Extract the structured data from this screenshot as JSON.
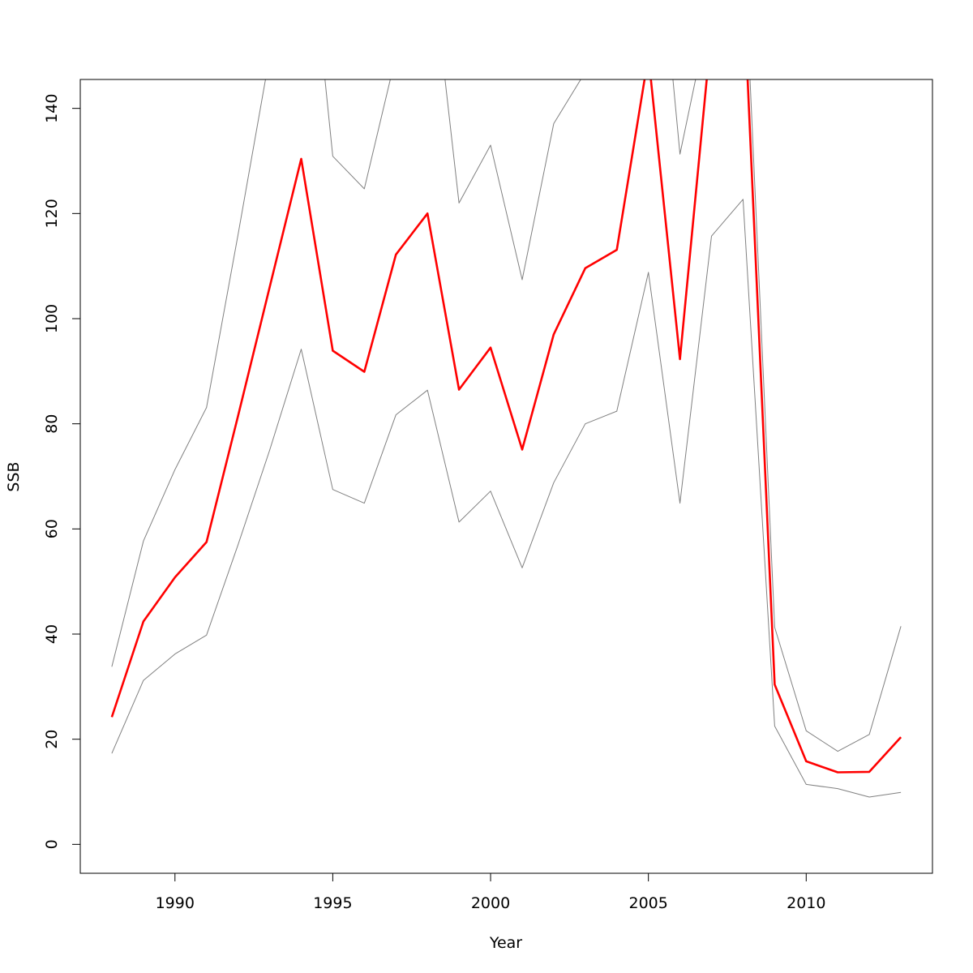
{
  "chart_data": {
    "type": "line",
    "title": "",
    "xlabel": "Year",
    "ylabel": "SSB",
    "xlim": [
      1987,
      2014
    ],
    "ylim": [
      -5.5,
      145.5
    ],
    "x_ticks": [
      1990,
      1995,
      2000,
      2005,
      2010
    ],
    "y_ticks": [
      0,
      20,
      40,
      60,
      80,
      100,
      120,
      140
    ],
    "grid": false,
    "x": [
      1988,
      1989,
      1990,
      1991,
      1992,
      1993,
      1994,
      1995,
      1996,
      1997,
      1998,
      1999,
      2000,
      2001,
      2002,
      2003,
      2004,
      2005,
      2006,
      2007,
      2008,
      2009,
      2010,
      2011,
      2012,
      2013
    ],
    "series": [
      {
        "role": "upper",
        "color": "#808080",
        "values": [
          33.8,
          57.7,
          71.3,
          83.1,
          116,
          150,
          190,
          130.9,
          124.7,
          150,
          175,
          122,
          133,
          107.4,
          137.1,
          146.9,
          155,
          195,
          131.3,
          160,
          175,
          41.3,
          21.6,
          17.7,
          20.9,
          41.5
        ]
      },
      {
        "role": "estimate",
        "color": "#ff0000",
        "values": [
          24.2,
          42.4,
          50.8,
          57.5,
          81.5,
          106,
          130.4,
          93.9,
          89.9,
          112.2,
          120,
          86.5,
          94.5,
          75.1,
          97,
          109.6,
          113.1,
          150,
          92.3,
          155,
          165,
          30.4,
          15.8,
          13.7,
          13.8,
          20.4
        ]
      },
      {
        "role": "lower",
        "color": "#808080",
        "values": [
          17.3,
          31.2,
          36.2,
          39.8,
          57,
          75,
          94.2,
          67.5,
          64.9,
          81.7,
          86.4,
          61.3,
          67.2,
          52.6,
          68.8,
          80,
          82.4,
          108.8,
          64.9,
          115.7,
          122.7,
          22.5,
          11.4,
          10.6,
          9,
          9.9
        ]
      }
    ]
  }
}
